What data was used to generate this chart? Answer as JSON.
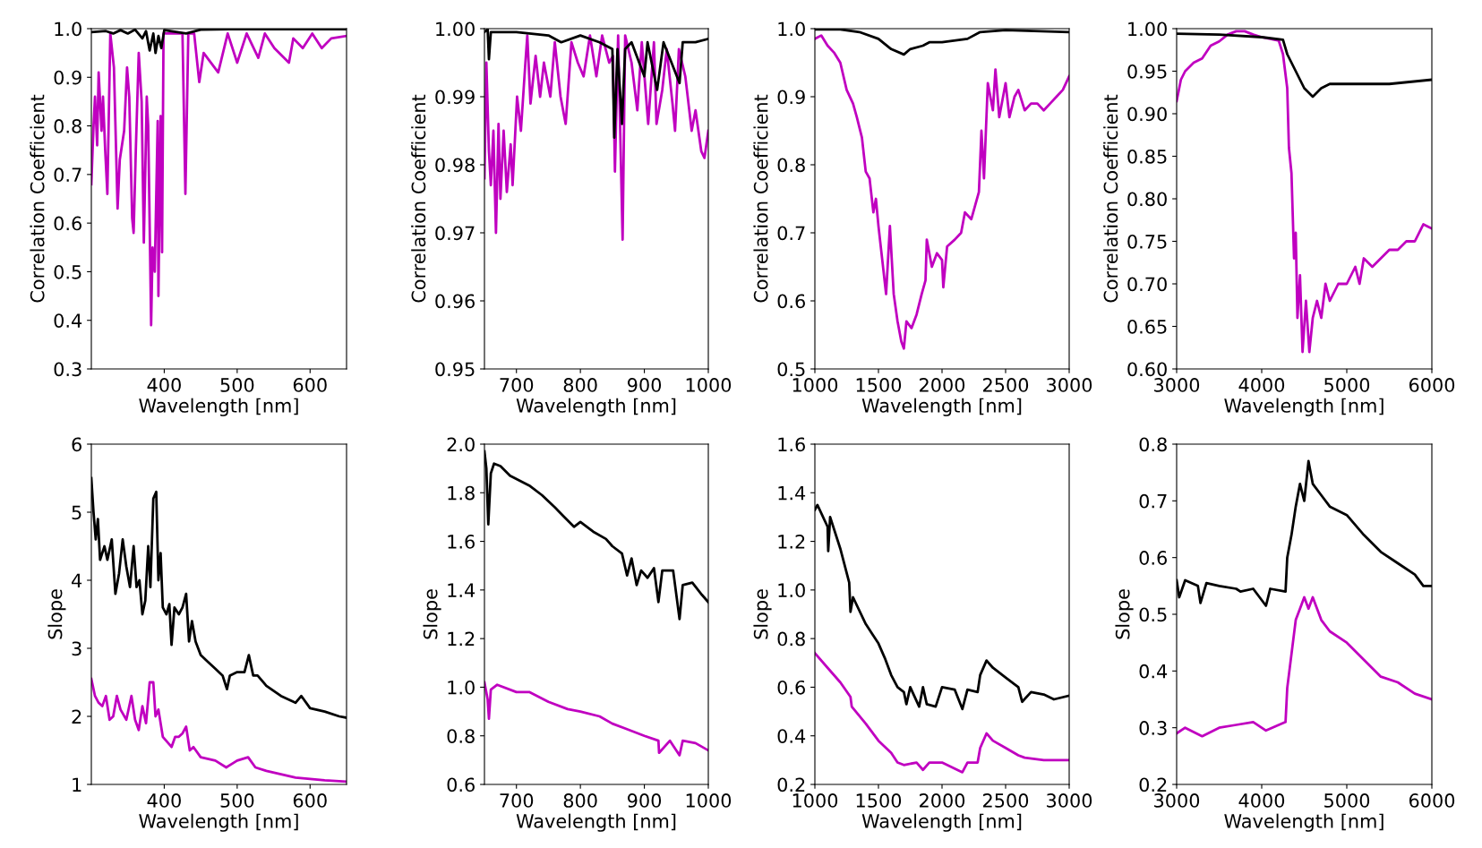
{
  "chart_data": [
    {
      "type": "line",
      "xlabel": "Wavelength [nm]",
      "ylabel": "Correlation Coefficient",
      "xlim": [
        300,
        650
      ],
      "ylim": [
        0.3,
        1.0
      ],
      "xticks": [
        400,
        500,
        600
      ],
      "yticks": [
        0.3,
        0.4,
        0.5,
        0.6,
        0.7,
        0.8,
        0.9,
        {
          "value": 1.0,
          "label": "1.0"
        }
      ],
      "series": [
        {
          "color": "#c000c0",
          "x": [
            300,
            303,
            305,
            308,
            310,
            314,
            316,
            319,
            322,
            326,
            331,
            336,
            339,
            345,
            349,
            352,
            356,
            358,
            361,
            365,
            369,
            372,
            376,
            378,
            382,
            384,
            387,
            391,
            392,
            395,
            397,
            399,
            404,
            425,
            429,
            433,
            441,
            448,
            454,
            474,
            487,
            500,
            513,
            529,
            538,
            551,
            571,
            577,
            590,
            603,
            616,
            629,
            650
          ],
          "values": [
            0.68,
            0.8,
            0.86,
            0.76,
            0.91,
            0.79,
            0.86,
            0.75,
            0.66,
            0.99,
            0.92,
            0.63,
            0.73,
            0.79,
            0.92,
            0.86,
            0.61,
            0.58,
            0.75,
            0.95,
            0.85,
            0.56,
            0.86,
            0.8,
            0.39,
            0.55,
            0.5,
            0.81,
            0.45,
            0.82,
            0.54,
            0.99,
            0.99,
            0.99,
            0.66,
            0.99,
            0.99,
            0.89,
            0.95,
            0.91,
            0.99,
            0.93,
            0.99,
            0.94,
            0.99,
            0.96,
            0.93,
            0.98,
            0.96,
            0.99,
            0.96,
            0.98,
            0.985
          ]
        },
        {
          "color": "#000000",
          "x": [
            300,
            320,
            330,
            340,
            350,
            360,
            370,
            375,
            380,
            385,
            388,
            392,
            396,
            400,
            430,
            450,
            500,
            650
          ],
          "values": [
            0.993,
            0.995,
            0.99,
            0.997,
            0.99,
            0.998,
            0.98,
            0.995,
            0.955,
            0.99,
            0.95,
            0.985,
            0.96,
            0.997,
            0.99,
            0.998,
            0.999,
            0.999
          ]
        }
      ]
    },
    {
      "type": "line",
      "xlabel": "Wavelength [nm]",
      "ylabel": "Correlation Coefficient",
      "xlim": [
        650,
        1000
      ],
      "ylim": [
        0.95,
        1.0
      ],
      "xticks": [
        700,
        800,
        900,
        1000
      ],
      "yticks": [
        0.95,
        0.96,
        0.97,
        0.98,
        0.99,
        {
          "value": 1.0,
          "label": "1.00"
        }
      ],
      "series": [
        {
          "color": "#c000c0",
          "x": [
            650,
            653,
            657,
            660,
            664,
            668,
            672,
            675,
            680,
            685,
            691,
            694,
            701,
            707,
            714,
            717,
            722,
            730,
            737,
            743,
            753,
            760,
            769,
            777,
            786,
            796,
            805,
            815,
            825,
            834,
            845,
            851,
            854,
            859,
            866,
            870,
            880,
            889,
            896,
            906,
            915,
            919,
            928,
            935,
            944,
            948,
            954,
            964,
            974,
            980,
            989,
            994,
            1000
          ],
          "values": [
            0.978,
            0.995,
            0.982,
            0.977,
            0.985,
            0.97,
            0.986,
            0.975,
            0.985,
            0.976,
            0.983,
            0.977,
            0.99,
            0.985,
            0.995,
            0.999,
            0.989,
            0.996,
            0.99,
            0.995,
            0.99,
            0.998,
            0.99,
            0.986,
            0.998,
            0.995,
            0.993,
            0.999,
            0.993,
            0.999,
            0.995,
            0.996,
            0.979,
            0.999,
            0.969,
            0.999,
            0.995,
            0.988,
            0.998,
            0.986,
            0.998,
            0.986,
            0.991,
            0.997,
            0.989,
            0.985,
            0.997,
            0.993,
            0.985,
            0.988,
            0.982,
            0.981,
            0.985
          ]
        },
        {
          "color": "#000000",
          "x": [
            650,
            655,
            657,
            660,
            700,
            750,
            770,
            800,
            830,
            850,
            853,
            858,
            865,
            870,
            880,
            900,
            905,
            920,
            930,
            955,
            960,
            980,
            1000
          ],
          "values": [
            0.9995,
            0.9999,
            0.9955,
            0.9995,
            0.9995,
            0.999,
            0.998,
            0.999,
            0.998,
            0.997,
            0.984,
            0.997,
            0.986,
            0.997,
            0.998,
            0.993,
            0.998,
            0.991,
            0.998,
            0.992,
            0.998,
            0.998,
            0.9985
          ]
        }
      ]
    },
    {
      "type": "line",
      "xlabel": "Wavelength [nm]",
      "ylabel": "Correlation Coefficient",
      "xlim": [
        1000,
        3000
      ],
      "ylim": [
        0.5,
        1.0
      ],
      "xticks": [
        1000,
        1500,
        2000,
        2500,
        3000
      ],
      "yticks": [
        0.5,
        0.6,
        0.7,
        0.8,
        0.9,
        {
          "value": 1.0,
          "label": "1.0"
        }
      ],
      "series": [
        {
          "color": "#c000c0",
          "x": [
            1000,
            1050,
            1100,
            1150,
            1200,
            1250,
            1300,
            1330,
            1370,
            1400,
            1430,
            1460,
            1480,
            1500,
            1530,
            1560,
            1590,
            1620,
            1650,
            1680,
            1700,
            1720,
            1760,
            1800,
            1840,
            1870,
            1880,
            1920,
            1960,
            2000,
            2010,
            2040,
            2100,
            2150,
            2180,
            2230,
            2260,
            2290,
            2310,
            2330,
            2360,
            2400,
            2420,
            2450,
            2500,
            2530,
            2570,
            2600,
            2650,
            2700,
            2750,
            2800,
            2850,
            2900,
            2950,
            3000
          ],
          "values": [
            0.985,
            0.99,
            0.975,
            0.965,
            0.95,
            0.91,
            0.89,
            0.87,
            0.84,
            0.79,
            0.78,
            0.73,
            0.75,
            0.71,
            0.66,
            0.61,
            0.71,
            0.61,
            0.57,
            0.54,
            0.53,
            0.57,
            0.56,
            0.58,
            0.61,
            0.63,
            0.69,
            0.65,
            0.67,
            0.66,
            0.62,
            0.68,
            0.69,
            0.7,
            0.73,
            0.72,
            0.74,
            0.76,
            0.85,
            0.78,
            0.92,
            0.88,
            0.94,
            0.87,
            0.92,
            0.87,
            0.9,
            0.91,
            0.88,
            0.89,
            0.89,
            0.88,
            0.89,
            0.9,
            0.91,
            0.93
          ]
        },
        {
          "color": "#000000",
          "x": [
            1000,
            1200,
            1350,
            1500,
            1600,
            1700,
            1750,
            1850,
            1900,
            2000,
            2200,
            2300,
            2500,
            3000
          ],
          "values": [
            0.999,
            0.999,
            0.995,
            0.985,
            0.97,
            0.962,
            0.97,
            0.975,
            0.98,
            0.98,
            0.985,
            0.995,
            0.998,
            0.995
          ]
        }
      ]
    },
    {
      "type": "line",
      "xlabel": "Wavelength [nm]",
      "ylabel": "Correlation Coefficient",
      "xlim": [
        3000,
        6000
      ],
      "ylim": [
        0.6,
        1.0
      ],
      "xticks": [
        3000,
        4000,
        5000,
        6000
      ],
      "yticks": [
        {
          "value": 0.6,
          "label": "0.60"
        },
        0.65,
        {
          "value": 0.7,
          "label": "0.70"
        },
        0.75,
        {
          "value": 0.8,
          "label": "0.80"
        },
        0.85,
        {
          "value": 0.9,
          "label": "0.90"
        },
        0.95,
        {
          "value": 1.0,
          "label": "1.00"
        }
      ],
      "series": [
        {
          "color": "#c000c0",
          "x": [
            3000,
            3050,
            3100,
            3200,
            3300,
            3400,
            3500,
            3600,
            3700,
            3800,
            3900,
            4000,
            4100,
            4200,
            4250,
            4300,
            4320,
            4350,
            4380,
            4400,
            4420,
            4450,
            4480,
            4520,
            4560,
            4600,
            4650,
            4700,
            4750,
            4800,
            4900,
            5000,
            5100,
            5150,
            5200,
            5300,
            5400,
            5500,
            5600,
            5700,
            5800,
            5900,
            6000
          ],
          "values": [
            0.915,
            0.94,
            0.95,
            0.96,
            0.965,
            0.98,
            0.985,
            0.993,
            0.997,
            0.997,
            0.993,
            0.99,
            0.988,
            0.986,
            0.97,
            0.93,
            0.86,
            0.83,
            0.73,
            0.76,
            0.66,
            0.71,
            0.62,
            0.68,
            0.62,
            0.66,
            0.68,
            0.66,
            0.7,
            0.68,
            0.7,
            0.7,
            0.72,
            0.7,
            0.73,
            0.72,
            0.73,
            0.74,
            0.74,
            0.75,
            0.75,
            0.77,
            0.765
          ]
        },
        {
          "color": "#000000",
          "x": [
            3000,
            3500,
            4000,
            4250,
            4300,
            4400,
            4500,
            4600,
            4700,
            4800,
            5000,
            5500,
            6000
          ],
          "values": [
            0.994,
            0.993,
            0.99,
            0.987,
            0.97,
            0.95,
            0.93,
            0.92,
            0.93,
            0.935,
            0.935,
            0.935,
            0.94
          ]
        }
      ]
    },
    {
      "type": "line",
      "xlabel": "Wavelength [nm]",
      "ylabel": "Slope",
      "xlim": [
        300,
        650
      ],
      "ylim": [
        1,
        6
      ],
      "xticks": [
        400,
        500,
        600
      ],
      "yticks": [
        1,
        2,
        3,
        4,
        5,
        6
      ],
      "series": [
        {
          "color": "#000000",
          "x": [
            300,
            303,
            306,
            309,
            312,
            318,
            322,
            328,
            333,
            338,
            343,
            348,
            353,
            358,
            362,
            366,
            370,
            374,
            378,
            381,
            385,
            389,
            392,
            395,
            398,
            403,
            407,
            410,
            414,
            420,
            425,
            430,
            434,
            438,
            443,
            450,
            460,
            470,
            480,
            486,
            490,
            500,
            510,
            516,
            522,
            528,
            540,
            560,
            580,
            588,
            600,
            620,
            640,
            650
          ],
          "values": [
            5.5,
            5.0,
            4.6,
            4.9,
            4.3,
            4.5,
            4.3,
            4.6,
            3.8,
            4.1,
            4.6,
            4.2,
            3.9,
            4.5,
            3.9,
            4.0,
            3.5,
            3.7,
            4.5,
            3.9,
            5.2,
            5.3,
            4.0,
            4.4,
            3.6,
            3.5,
            3.65,
            3.05,
            3.6,
            3.5,
            3.6,
            3.8,
            3.1,
            3.4,
            3.1,
            2.9,
            2.8,
            2.7,
            2.6,
            2.4,
            2.6,
            2.65,
            2.65,
            2.9,
            2.6,
            2.6,
            2.45,
            2.3,
            2.2,
            2.3,
            2.12,
            2.07,
            2.0,
            1.98
          ]
        },
        {
          "color": "#c000c0",
          "x": [
            300,
            305,
            310,
            315,
            320,
            325,
            330,
            335,
            340,
            348,
            355,
            360,
            365,
            370,
            375,
            380,
            385,
            388,
            392,
            398,
            402,
            410,
            415,
            420,
            425,
            430,
            435,
            440,
            450,
            470,
            485,
            500,
            515,
            525,
            540,
            560,
            580,
            600,
            620,
            650
          ],
          "values": [
            2.55,
            2.3,
            2.2,
            2.15,
            2.3,
            1.95,
            2.0,
            2.3,
            2.1,
            1.95,
            2.3,
            1.95,
            1.8,
            2.15,
            1.9,
            2.5,
            2.5,
            2.0,
            2.1,
            1.7,
            1.65,
            1.55,
            1.7,
            1.7,
            1.75,
            1.85,
            1.5,
            1.55,
            1.4,
            1.35,
            1.25,
            1.35,
            1.4,
            1.25,
            1.2,
            1.15,
            1.1,
            1.08,
            1.06,
            1.04
          ]
        }
      ]
    },
    {
      "type": "line",
      "xlabel": "Wavelength [nm]",
      "ylabel": "Slope",
      "xlim": [
        650,
        1000
      ],
      "ylim": [
        0.6,
        2.0
      ],
      "xticks": [
        700,
        800,
        900,
        1000
      ],
      "yticks": [
        0.6,
        0.8,
        {
          "value": 1.0,
          "label": "1.0"
        },
        1.2,
        1.4,
        1.6,
        1.8,
        {
          "value": 2.0,
          "label": "2.0"
        }
      ],
      "series": [
        {
          "color": "#000000",
          "x": [
            650,
            653,
            656,
            660,
            665,
            675,
            690,
            720,
            740,
            760,
            775,
            790,
            800,
            820,
            840,
            850,
            865,
            873,
            880,
            888,
            895,
            905,
            915,
            922,
            928,
            945,
            955,
            960,
            975,
            990,
            1000
          ],
          "values": [
            1.97,
            1.9,
            1.67,
            1.88,
            1.92,
            1.91,
            1.87,
            1.83,
            1.79,
            1.74,
            1.7,
            1.66,
            1.68,
            1.64,
            1.61,
            1.58,
            1.55,
            1.46,
            1.53,
            1.42,
            1.48,
            1.45,
            1.49,
            1.35,
            1.48,
            1.48,
            1.28,
            1.42,
            1.43,
            1.38,
            1.35
          ]
        },
        {
          "color": "#c000c0",
          "x": [
            650,
            655,
            657,
            660,
            670,
            700,
            720,
            750,
            780,
            800,
            830,
            850,
            870,
            880,
            900,
            922,
            923,
            940,
            955,
            960,
            980,
            1000
          ],
          "values": [
            1.02,
            0.95,
            0.87,
            0.99,
            1.01,
            0.98,
            0.98,
            0.94,
            0.91,
            0.9,
            0.88,
            0.85,
            0.83,
            0.82,
            0.8,
            0.78,
            0.73,
            0.78,
            0.72,
            0.78,
            0.77,
            0.74
          ]
        }
      ]
    },
    {
      "type": "line",
      "xlabel": "Wavelength [nm]",
      "ylabel": "Slope",
      "xlim": [
        1000,
        3000
      ],
      "ylim": [
        0.2,
        1.6
      ],
      "xticks": [
        1000,
        1500,
        2000,
        2500,
        3000
      ],
      "yticks": [
        0.2,
        0.4,
        0.6,
        0.8,
        {
          "value": 1.0,
          "label": "1.0"
        },
        1.2,
        1.4,
        1.6
      ],
      "series": [
        {
          "color": "#000000",
          "x": [
            1000,
            1020,
            1100,
            1105,
            1120,
            1200,
            1270,
            1280,
            1300,
            1400,
            1450,
            1500,
            1550,
            1600,
            1650,
            1700,
            1720,
            1750,
            1820,
            1850,
            1880,
            1950,
            2000,
            2100,
            2160,
            2200,
            2280,
            2300,
            2350,
            2400,
            2500,
            2600,
            2630,
            2700,
            2800,
            2880,
            3000
          ],
          "values": [
            1.33,
            1.35,
            1.26,
            1.16,
            1.3,
            1.17,
            1.03,
            0.91,
            0.97,
            0.86,
            0.82,
            0.78,
            0.72,
            0.65,
            0.6,
            0.58,
            0.53,
            0.6,
            0.52,
            0.6,
            0.53,
            0.52,
            0.6,
            0.59,
            0.51,
            0.59,
            0.58,
            0.65,
            0.71,
            0.68,
            0.64,
            0.6,
            0.54,
            0.58,
            0.57,
            0.55,
            0.565
          ]
        },
        {
          "color": "#c000c0",
          "x": [
            1000,
            1100,
            1200,
            1280,
            1290,
            1400,
            1500,
            1600,
            1650,
            1700,
            1800,
            1850,
            1900,
            2000,
            2160,
            2200,
            2280,
            2300,
            2350,
            2400,
            2500,
            2600,
            2650,
            2800,
            3000
          ],
          "values": [
            0.74,
            0.68,
            0.62,
            0.56,
            0.52,
            0.45,
            0.38,
            0.33,
            0.29,
            0.28,
            0.29,
            0.26,
            0.29,
            0.29,
            0.25,
            0.29,
            0.29,
            0.35,
            0.41,
            0.38,
            0.35,
            0.32,
            0.31,
            0.3,
            0.3
          ]
        }
      ]
    },
    {
      "type": "line",
      "xlabel": "Wavelength [nm]",
      "ylabel": "Slope",
      "xlim": [
        3000,
        6000
      ],
      "ylim": [
        0.2,
        0.8
      ],
      "xticks": [
        3000,
        4000,
        5000,
        6000
      ],
      "yticks": [
        0.2,
        0.3,
        0.4,
        0.5,
        0.6,
        0.7,
        0.8
      ],
      "series": [
        {
          "color": "#000000",
          "x": [
            3000,
            3030,
            3100,
            3250,
            3280,
            3350,
            3500,
            3700,
            3750,
            3900,
            4050,
            4100,
            4280,
            4300,
            4350,
            4400,
            4450,
            4500,
            4550,
            4600,
            4700,
            4800,
            5000,
            5200,
            5400,
            5600,
            5800,
            5900,
            6000
          ],
          "values": [
            0.56,
            0.53,
            0.56,
            0.55,
            0.52,
            0.555,
            0.55,
            0.545,
            0.54,
            0.545,
            0.515,
            0.545,
            0.54,
            0.6,
            0.64,
            0.69,
            0.73,
            0.7,
            0.77,
            0.73,
            0.71,
            0.69,
            0.675,
            0.64,
            0.61,
            0.59,
            0.57,
            0.55,
            0.55
          ]
        },
        {
          "color": "#c000c0",
          "x": [
            3000,
            3100,
            3300,
            3500,
            3700,
            3900,
            4050,
            4280,
            4300,
            4350,
            4400,
            4450,
            4500,
            4550,
            4600,
            4700,
            4800,
            5000,
            5200,
            5400,
            5600,
            5800,
            6000
          ],
          "values": [
            0.29,
            0.3,
            0.285,
            0.3,
            0.305,
            0.31,
            0.295,
            0.31,
            0.37,
            0.43,
            0.49,
            0.51,
            0.53,
            0.51,
            0.53,
            0.49,
            0.47,
            0.45,
            0.42,
            0.39,
            0.38,
            0.36,
            0.35
          ]
        }
      ]
    }
  ]
}
